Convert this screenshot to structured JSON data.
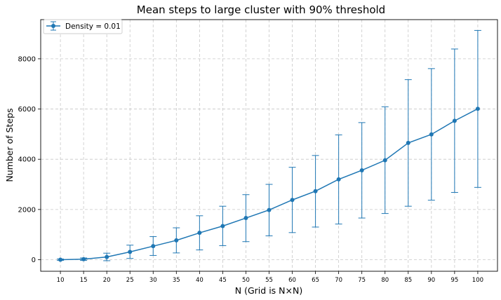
{
  "chart_data": {
    "type": "line",
    "title": "Mean steps to large cluster with 90% threshold",
    "xlabel": "N (Grid is N×N)",
    "ylabel": "Number of Steps",
    "x": [
      10,
      15,
      20,
      25,
      30,
      35,
      40,
      45,
      50,
      55,
      60,
      65,
      70,
      75,
      80,
      85,
      90,
      95,
      100
    ],
    "ylim": [
      -460,
      9560
    ],
    "yticks": [
      0,
      2000,
      4000,
      6000,
      8000
    ],
    "grid": true,
    "legend_position": "top-left",
    "series": [
      {
        "name": "Density = 0.01",
        "color": "#1f77b4",
        "marker": "circle",
        "error_bars": true,
        "values": [
          0,
          20,
          110,
          310,
          540,
          770,
          1070,
          1340,
          1660,
          1980,
          2380,
          2730,
          3200,
          3560,
          3960,
          4650,
          4990,
          5530,
          6010
        ],
        "upper": [
          30,
          70,
          260,
          580,
          920,
          1270,
          1750,
          2130,
          2590,
          3000,
          3680,
          4150,
          4970,
          5460,
          6090,
          7170,
          7610,
          8390,
          9130
        ],
        "lower": [
          -30,
          -30,
          -40,
          50,
          170,
          270,
          390,
          560,
          720,
          950,
          1080,
          1300,
          1420,
          1660,
          1840,
          2130,
          2370,
          2680,
          2880
        ]
      }
    ]
  }
}
